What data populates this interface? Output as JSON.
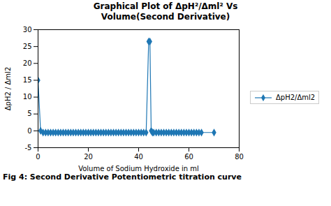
{
  "chart_data": {
    "type": "line",
    "title": "Graphical Plot of ΔpH²/Δml² Vs",
    "subtitle": "Volume(Second Derivative)",
    "caption": "Fig 4: Second Derivative Potentiometric titration curve",
    "x_label": "Volume of Sodium Hydroxide in ml",
    "y_label": "ΔpH2 / Δml2",
    "x": [
      0,
      1,
      2,
      3,
      4,
      5,
      6,
      7,
      8,
      9,
      10,
      11,
      12,
      13,
      14,
      15,
      16,
      17,
      18,
      19,
      20,
      21,
      22,
      23,
      24,
      25,
      26,
      27,
      28,
      29,
      30,
      31,
      32,
      33,
      34,
      35,
      36,
      37,
      38,
      39,
      40,
      41,
      42,
      43,
      44,
      44.5,
      45,
      45.5,
      46,
      47,
      48,
      49,
      50,
      51,
      52,
      53,
      54,
      55,
      56,
      57,
      58,
      59,
      60,
      61,
      62,
      63,
      64,
      65,
      70
    ],
    "series": [
      {
        "name": "ΔpH2/Δml2",
        "color": "#1f77b4",
        "marker": "diamond",
        "values": [
          15,
          0,
          -0.5,
          -0.5,
          -0.5,
          -0.5,
          -0.5,
          -0.5,
          -0.5,
          -0.5,
          -0.5,
          -0.5,
          -0.5,
          -0.5,
          -0.5,
          -0.5,
          -0.5,
          -0.5,
          -0.5,
          -0.5,
          -0.5,
          -0.5,
          -0.5,
          -0.5,
          -0.5,
          -0.5,
          -0.5,
          -0.5,
          -0.5,
          -0.5,
          -0.5,
          -0.5,
          -0.5,
          -0.5,
          -0.5,
          -0.5,
          -0.5,
          -0.5,
          -0.5,
          -0.5,
          -0.5,
          -0.5,
          -0.5,
          -0.5,
          26.5,
          26.5,
          0,
          -0.5,
          -0.5,
          -0.5,
          -0.5,
          -0.5,
          -0.5,
          -0.5,
          -0.5,
          -0.5,
          -0.5,
          -0.5,
          -0.5,
          -0.5,
          -0.5,
          -0.5,
          -0.5,
          -0.5,
          -0.5,
          -0.5,
          -0.5,
          -0.5,
          -0.5
        ]
      }
    ],
    "xlim": [
      0,
      80
    ],
    "ylim": [
      -5,
      30
    ],
    "xticks": [
      0,
      20,
      40,
      60,
      80
    ],
    "yticks": [
      -5,
      0,
      5,
      10,
      15,
      20,
      25,
      30
    ],
    "grid": false,
    "legend": "right"
  }
}
